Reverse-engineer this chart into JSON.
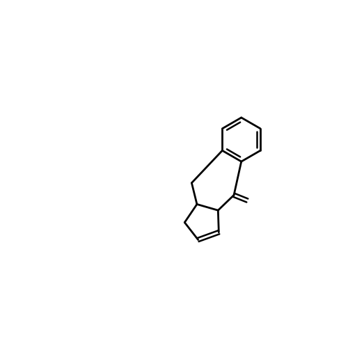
{
  "bg_color": "#ffffff",
  "black": "#000000",
  "red": "#ff0000",
  "blue": "#0000ff",
  "green": "#00cc00",
  "lw": 2.2,
  "lw_double": 1.8,
  "fs_label": 13,
  "fs_small": 11
}
